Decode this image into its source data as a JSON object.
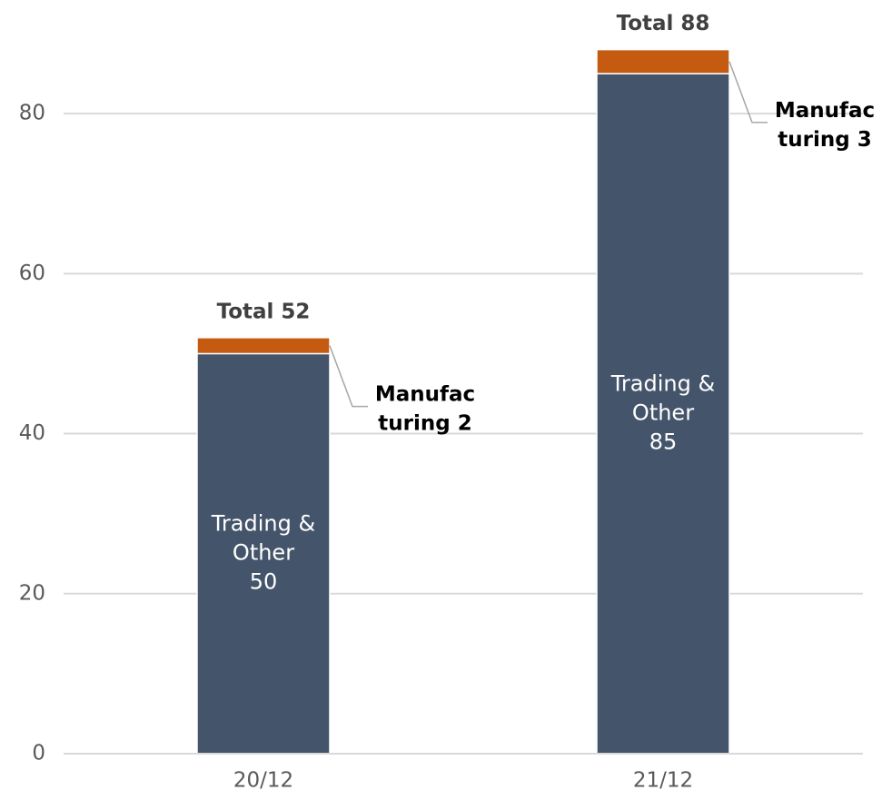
{
  "chart_data": {
    "type": "stacked_bar",
    "categories": [
      "20/12",
      "21/12"
    ],
    "series": [
      {
        "name": "Trading & Other",
        "color": "#44546a",
        "values": [
          50,
          85
        ],
        "value_labels": [
          "Trading &\nOther\n50",
          "Trading &\nOther\n85"
        ]
      },
      {
        "name": "Manufacturing",
        "color": "#c55a11",
        "values": [
          2,
          3
        ],
        "value_labels": [
          "Manufac\nturing 2",
          "Manufac\nturing 3"
        ]
      }
    ],
    "totals": [
      52,
      88
    ],
    "total_labels": [
      "Total 52",
      "Total 88"
    ],
    "ylim": [
      0,
      90
    ],
    "yticks": [
      0,
      20,
      40,
      60,
      80
    ],
    "grid": true
  }
}
